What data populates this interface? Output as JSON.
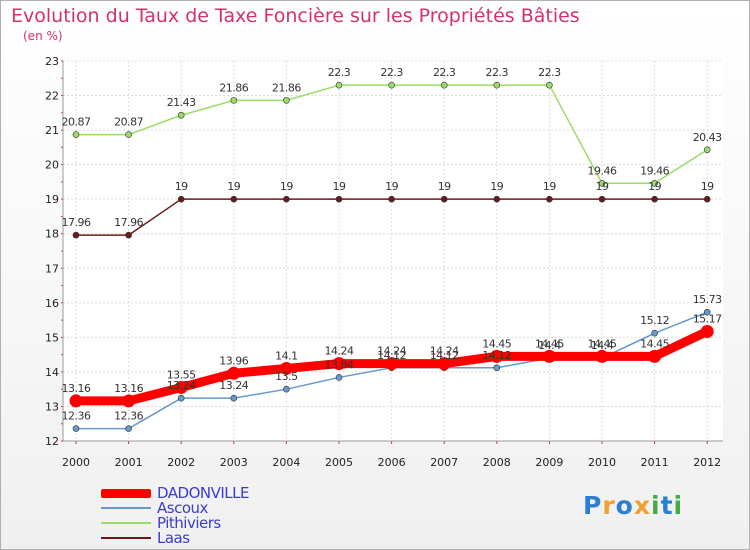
{
  "header": {
    "title": "Evolution du Taux de Taxe Foncière sur les Propriétés Bâties",
    "subtitle": "(en %)"
  },
  "chart_data": {
    "type": "line",
    "title": "Evolution du Taux de Taxe Foncière sur les Propriétés Bâties",
    "ylabel": "(en %)",
    "xlabel": "",
    "ylim": [
      12,
      23
    ],
    "yticks": [
      12,
      13,
      14,
      15,
      16,
      17,
      18,
      19,
      20,
      21,
      22,
      23
    ],
    "categories": [
      "2000",
      "2001",
      "2002",
      "2003",
      "2004",
      "2005",
      "2006",
      "2007",
      "2008",
      "2009",
      "2010",
      "2011",
      "2012"
    ],
    "legend": "bottom-left",
    "series": [
      {
        "name": "DADONVILLE",
        "color": "#ff0000",
        "values": [
          13.16,
          13.16,
          13.55,
          13.96,
          14.1,
          14.24,
          14.24,
          14.24,
          14.45,
          14.45,
          14.45,
          14.45,
          15.17
        ]
      },
      {
        "name": "Ascoux",
        "color": "#6699cc",
        "values": [
          12.36,
          12.36,
          13.24,
          13.24,
          13.5,
          13.84,
          14.12,
          14.12,
          14.12,
          14.4,
          14.4,
          15.12,
          15.73
        ]
      },
      {
        "name": "Pithiviers",
        "color": "#99dd66",
        "values": [
          20.87,
          20.87,
          21.43,
          21.86,
          21.86,
          22.3,
          22.3,
          22.3,
          22.3,
          22.3,
          19.46,
          19.46,
          20.43
        ]
      },
      {
        "name": "Laas",
        "color": "#6b1a1a",
        "values": [
          17.96,
          17.96,
          19,
          19,
          19,
          19,
          19,
          19,
          19,
          19,
          19,
          19,
          19
        ]
      }
    ],
    "labels": [
      {
        "series": 0,
        "texts": [
          "13.16",
          "13.16",
          "13.55",
          "13.96",
          "14.1",
          "14.24",
          "14.24",
          "14.24",
          "14.45",
          "14.45",
          "14.45",
          "14.45",
          "15.17"
        ]
      },
      {
        "series": 1,
        "texts": [
          "12.36",
          "12.36",
          "13.24",
          "13.24",
          "13.5",
          "13.84",
          "14.12",
          "14.12",
          "14.12",
          "14.4",
          "14.4",
          "15.12",
          "15.73"
        ]
      },
      {
        "series": 2,
        "texts": [
          "20.87",
          "20.87",
          "21.43",
          "21.86",
          "21.86",
          "22.3",
          "22.3",
          "22.3",
          "22.3",
          "22.3",
          "19.46",
          "19.46",
          "20.43"
        ]
      },
      {
        "series": 3,
        "texts": [
          "17.96",
          "17.96",
          "19",
          "19",
          "19",
          "19",
          "19",
          "19",
          "19",
          "19",
          "19",
          "19",
          "19"
        ]
      }
    ]
  },
  "legend": {
    "items": [
      "DADONVILLE",
      "Ascoux",
      "Pithiviers",
      "Laas"
    ]
  },
  "logo": {
    "letters": [
      "P",
      "r",
      "o",
      "x",
      "i",
      "t",
      "i"
    ],
    "colors": [
      "#2a7fd4",
      "#f0a030",
      "#2a7fd4",
      "#f0a030",
      "#44aa44",
      "#2a7fd4",
      "#44aa44"
    ]
  }
}
